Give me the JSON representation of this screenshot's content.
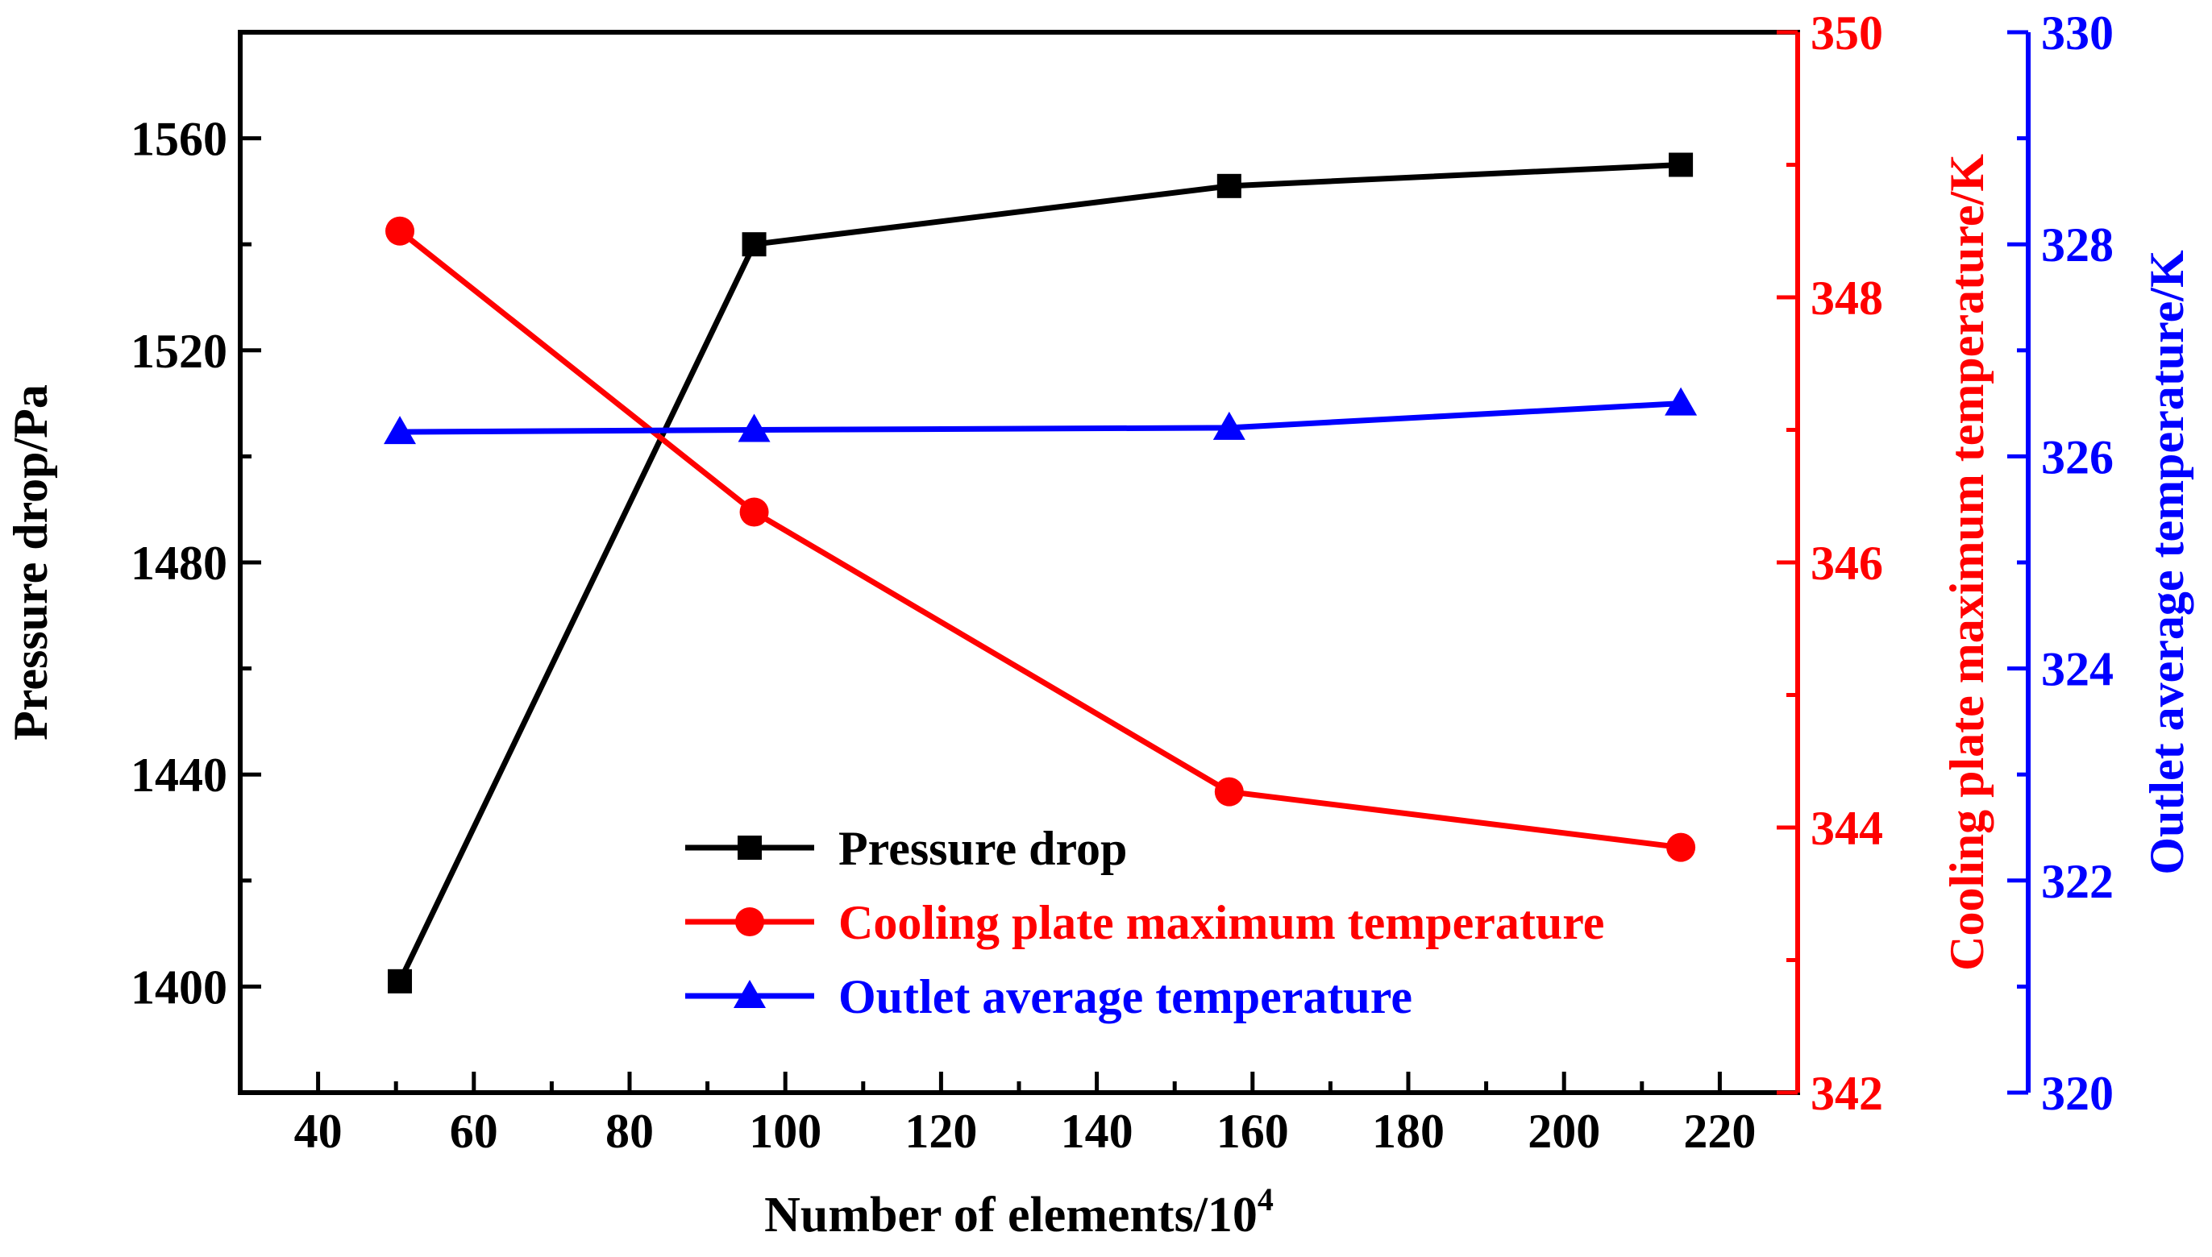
{
  "chart_data": {
    "type": "line",
    "title": "",
    "xlabel": "Number of elements/10",
    "xlabel_sup": "4",
    "xlim": [
      30,
      230
    ],
    "xticks": [
      40,
      60,
      80,
      100,
      120,
      140,
      160,
      180,
      200,
      220
    ],
    "axes": [
      {
        "id": "left",
        "label": "Pressure drop/Pa",
        "ylim": [
          1380,
          1580
        ],
        "ticks": [
          1400,
          1440,
          1480,
          1520,
          1560
        ],
        "color": "#000000"
      },
      {
        "id": "right1",
        "label": "Cooling plate maximum temperature/K",
        "ylim": [
          342,
          350
        ],
        "ticks": [
          342,
          344,
          346,
          348,
          350
        ],
        "color": "#ff0000"
      },
      {
        "id": "right2",
        "label": "Outlet average temperature/K",
        "ylim": [
          320,
          330
        ],
        "ticks": [
          320,
          322,
          324,
          326,
          328,
          330
        ],
        "color": "#0000ff"
      }
    ],
    "x": [
      50.5,
      96,
      157,
      215
    ],
    "series": [
      {
        "name": "Pressure drop",
        "axis": "left",
        "marker": "square",
        "color": "#000000",
        "values": [
          1401,
          1540,
          1551,
          1555
        ]
      },
      {
        "name": "Cooling plate maximum temperature",
        "axis": "right1",
        "marker": "circle",
        "color": "#ff0000",
        "values": [
          348.5,
          346.38,
          344.27,
          343.85
        ]
      },
      {
        "name": "Outlet average temperature",
        "axis": "right2",
        "marker": "triangle",
        "color": "#0000ff",
        "values": [
          326.23,
          326.25,
          326.27,
          326.5
        ]
      }
    ],
    "grid": false,
    "legend_position": "bottom-center"
  }
}
